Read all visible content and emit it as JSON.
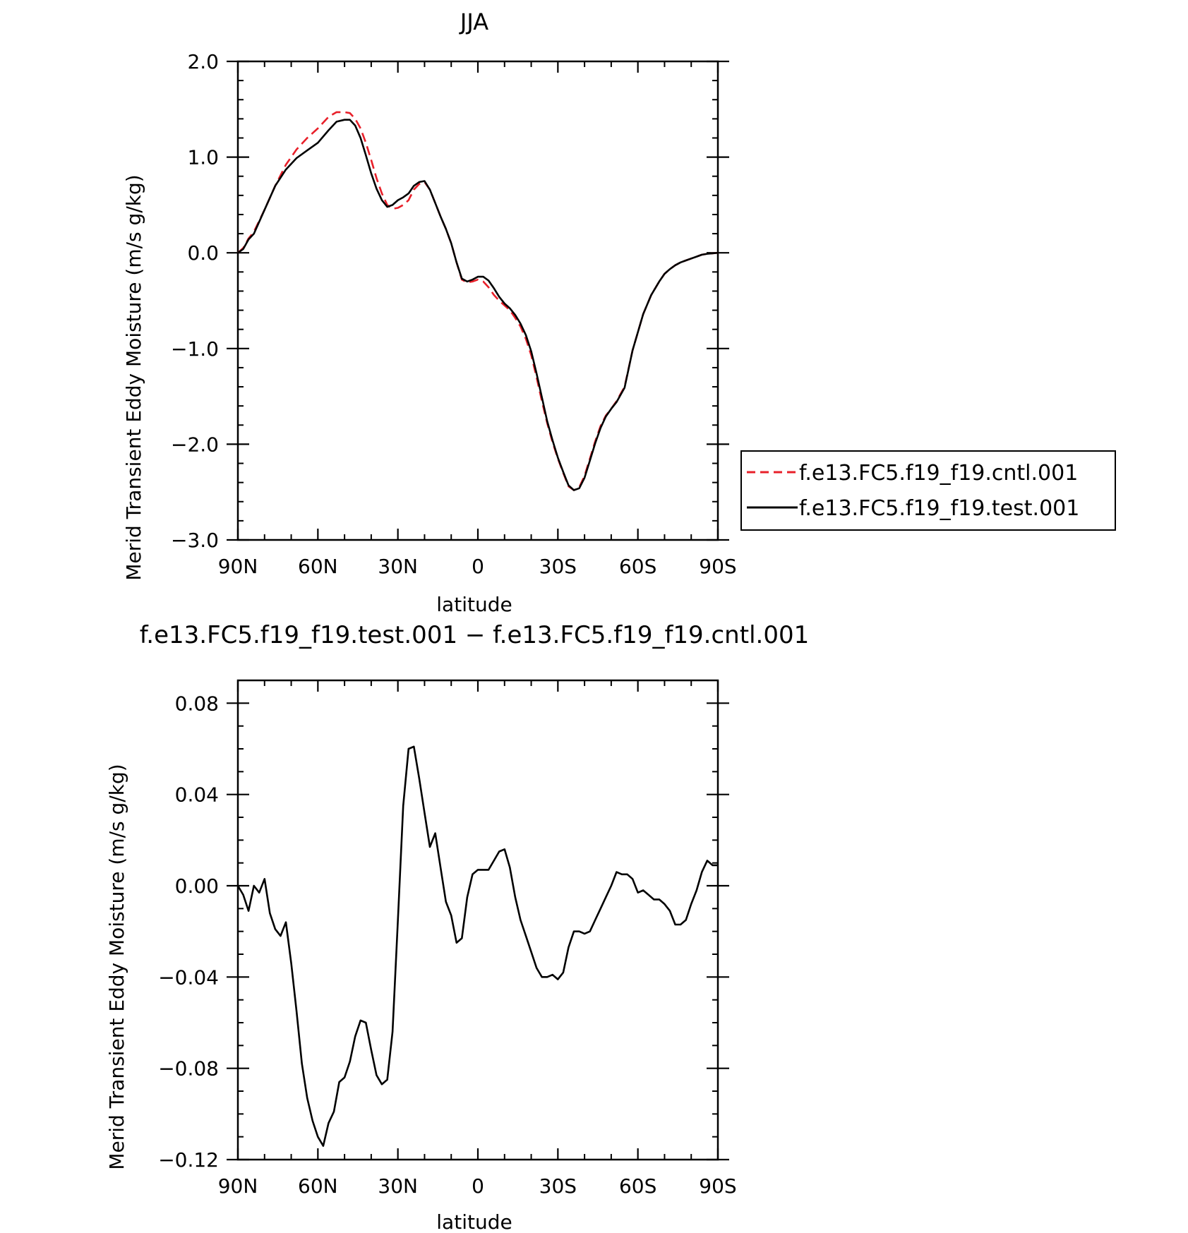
{
  "chart_data": [
    {
      "type": "line",
      "title": "JJA",
      "xlabel": "latitude",
      "ylabel": "Merid Transient Eddy Moisture (m/s g/kg)",
      "xlim": [
        90,
        -90
      ],
      "ylim": [
        -3.0,
        2.0
      ],
      "xticks": [
        {
          "value": 90,
          "label": "90N"
        },
        {
          "value": 60,
          "label": "60N"
        },
        {
          "value": 30,
          "label": "30N"
        },
        {
          "value": 0,
          "label": "0"
        },
        {
          "value": -30,
          "label": "30S"
        },
        {
          "value": -60,
          "label": "60S"
        },
        {
          "value": -90,
          "label": "90S"
        }
      ],
      "yticks": [
        {
          "value": 2.0,
          "label": "2.0"
        },
        {
          "value": 1.0,
          "label": "1.0"
        },
        {
          "value": 0.0,
          "label": "0.0"
        },
        {
          "value": -1.0,
          "label": "−1.0"
        },
        {
          "value": -2.0,
          "label": "−2.0"
        },
        {
          "value": -3.0,
          "label": "−3.0"
        }
      ],
      "legend_position": "right",
      "series": [
        {
          "name": "f.e13.FC5.f19_f19.cntl.001",
          "color": "#e8202a",
          "style": "dashed",
          "x": [
            90,
            88,
            86,
            84,
            80,
            76,
            72,
            68,
            64,
            60,
            56,
            53,
            50,
            48,
            46,
            44,
            42,
            40,
            38,
            36,
            34,
            32,
            30,
            28,
            26,
            24,
            22,
            20,
            18,
            16,
            14,
            12,
            10,
            8,
            6,
            4,
            2,
            0,
            -2,
            -4,
            -6,
            -8,
            -10,
            -12,
            -14,
            -16,
            -18,
            -20,
            -22,
            -24,
            -26,
            -28,
            -30,
            -32,
            -34,
            -36,
            -38,
            -40,
            -42,
            -44,
            -46,
            -48,
            -50,
            -52,
            -55,
            -58,
            -62,
            -65,
            -68,
            -70,
            -72,
            -74,
            -76,
            -78,
            -80,
            -82,
            -84,
            -86,
            -88,
            -90
          ],
          "y": [
            0.0,
            0.05,
            0.15,
            0.22,
            0.45,
            0.7,
            0.92,
            1.08,
            1.2,
            1.3,
            1.42,
            1.47,
            1.47,
            1.46,
            1.4,
            1.3,
            1.15,
            0.97,
            0.78,
            0.62,
            0.5,
            0.46,
            0.47,
            0.5,
            0.55,
            0.66,
            0.72,
            0.74,
            0.66,
            0.52,
            0.38,
            0.25,
            0.1,
            -0.1,
            -0.28,
            -0.31,
            -0.3,
            -0.28,
            -0.3,
            -0.36,
            -0.44,
            -0.5,
            -0.55,
            -0.6,
            -0.68,
            -0.77,
            -0.9,
            -1.07,
            -1.3,
            -1.55,
            -1.78,
            -1.98,
            -2.15,
            -2.3,
            -2.44,
            -2.48,
            -2.45,
            -2.33,
            -2.15,
            -1.97,
            -1.81,
            -1.7,
            -1.63,
            -1.55,
            -1.4,
            -1.02,
            -0.64,
            -0.44,
            -0.3,
            -0.22,
            -0.17,
            -0.13,
            -0.1,
            -0.08,
            -0.06,
            -0.04,
            -0.02,
            -0.01,
            -0.005,
            0.0
          ]
        },
        {
          "name": "f.e13.FC5.f19_f19.test.001",
          "color": "#000000",
          "style": "solid",
          "x": [
            90,
            88,
            86,
            84,
            80,
            76,
            72,
            68,
            64,
            60,
            56,
            53,
            50,
            48,
            46,
            44,
            42,
            40,
            38,
            36,
            34,
            32,
            30,
            28,
            26,
            24,
            22,
            20,
            18,
            16,
            14,
            12,
            10,
            8,
            6,
            4,
            2,
            0,
            -2,
            -4,
            -6,
            -8,
            -10,
            -12,
            -14,
            -16,
            -18,
            -20,
            -22,
            -24,
            -26,
            -28,
            -30,
            -32,
            -34,
            -36,
            -38,
            -40,
            -42,
            -44,
            -46,
            -48,
            -50,
            -52,
            -55,
            -58,
            -62,
            -65,
            -68,
            -70,
            -72,
            -74,
            -76,
            -78,
            -80,
            -82,
            -84,
            -86,
            -88,
            -90
          ],
          "y": [
            0.0,
            0.04,
            0.14,
            0.2,
            0.45,
            0.7,
            0.87,
            0.99,
            1.07,
            1.15,
            1.28,
            1.37,
            1.39,
            1.39,
            1.33,
            1.2,
            1.02,
            0.83,
            0.67,
            0.55,
            0.48,
            0.5,
            0.55,
            0.58,
            0.62,
            0.7,
            0.74,
            0.75,
            0.66,
            0.52,
            0.38,
            0.25,
            0.1,
            -0.1,
            -0.27,
            -0.3,
            -0.28,
            -0.25,
            -0.25,
            -0.29,
            -0.37,
            -0.46,
            -0.53,
            -0.58,
            -0.65,
            -0.74,
            -0.86,
            -1.03,
            -1.26,
            -1.51,
            -1.76,
            -1.96,
            -2.14,
            -2.29,
            -2.43,
            -2.48,
            -2.46,
            -2.35,
            -2.17,
            -1.99,
            -1.83,
            -1.71,
            -1.63,
            -1.56,
            -1.41,
            -1.02,
            -0.64,
            -0.44,
            -0.3,
            -0.22,
            -0.17,
            -0.13,
            -0.1,
            -0.08,
            -0.06,
            -0.04,
            -0.02,
            -0.01,
            -0.005,
            0.0
          ]
        }
      ]
    },
    {
      "type": "line",
      "title": "f.e13.FC5.f19_f19.test.001 − f.e13.FC5.f19_f19.cntl.001",
      "xlabel": "latitude",
      "ylabel": "Merid Transient Eddy Moisture (m/s g/kg)",
      "xlim": [
        90,
        -90
      ],
      "ylim": [
        -0.12,
        0.09
      ],
      "xticks": [
        {
          "value": 90,
          "label": "90N"
        },
        {
          "value": 60,
          "label": "60N"
        },
        {
          "value": 30,
          "label": "30N"
        },
        {
          "value": 0,
          "label": "0"
        },
        {
          "value": -30,
          "label": "30S"
        },
        {
          "value": -60,
          "label": "60S"
        },
        {
          "value": -90,
          "label": "90S"
        }
      ],
      "yticks": [
        {
          "value": 0.08,
          "label": "0.08"
        },
        {
          "value": 0.04,
          "label": "0.04"
        },
        {
          "value": 0.0,
          "label": "0.00"
        },
        {
          "value": -0.04,
          "label": "−0.04"
        },
        {
          "value": -0.08,
          "label": "−0.08"
        },
        {
          "value": -0.12,
          "label": "−0.12"
        }
      ],
      "series": [
        {
          "color": "#000000",
          "style": "solid",
          "x": [
            90,
            88,
            86,
            84,
            82,
            80,
            78,
            76,
            74,
            72,
            70,
            68,
            66,
            64,
            62,
            60,
            58,
            56,
            54,
            52,
            50,
            48,
            46,
            44,
            42,
            40,
            38,
            36,
            34,
            32,
            30,
            28,
            26,
            24,
            22,
            20,
            18,
            16,
            14,
            12,
            10,
            8,
            6,
            4,
            2,
            0,
            -2,
            -4,
            -6,
            -8,
            -10,
            -12,
            -14,
            -16,
            -18,
            -20,
            -22,
            -24,
            -26,
            -28,
            -30,
            -32,
            -34,
            -36,
            -38,
            -40,
            -42,
            -44,
            -46,
            -48,
            -50,
            -52,
            -54,
            -56,
            -58,
            -60,
            -62,
            -64,
            -66,
            -68,
            -70,
            -72,
            -74,
            -76,
            -78,
            -80,
            -82,
            -84,
            -86,
            -88,
            -90
          ],
          "y": [
            0.0,
            -0.004,
            -0.011,
            0.0,
            -0.003,
            0.003,
            -0.012,
            -0.019,
            -0.022,
            -0.016,
            -0.034,
            -0.055,
            -0.078,
            -0.093,
            -0.103,
            -0.11,
            -0.114,
            -0.104,
            -0.099,
            -0.086,
            -0.084,
            -0.077,
            -0.066,
            -0.059,
            -0.06,
            -0.072,
            -0.083,
            -0.087,
            -0.085,
            -0.064,
            -0.015,
            0.035,
            0.06,
            0.061,
            0.047,
            0.032,
            0.017,
            0.023,
            0.008,
            -0.007,
            -0.013,
            -0.025,
            -0.023,
            -0.005,
            0.005,
            0.007,
            0.007,
            0.007,
            0.011,
            0.015,
            0.016,
            0.008,
            -0.005,
            -0.015,
            -0.022,
            -0.029,
            -0.036,
            -0.04,
            -0.04,
            -0.039,
            -0.041,
            -0.038,
            -0.027,
            -0.02,
            -0.02,
            -0.021,
            -0.02,
            -0.015,
            -0.01,
            -0.005,
            0.0,
            0.006,
            0.005,
            0.005,
            0.003,
            -0.003,
            -0.002,
            -0.004,
            -0.006,
            -0.006,
            -0.008,
            -0.011,
            -0.017,
            -0.017,
            -0.015,
            -0.008,
            -0.002,
            0.006,
            0.011,
            0.009,
            0.009
          ]
        }
      ]
    }
  ]
}
